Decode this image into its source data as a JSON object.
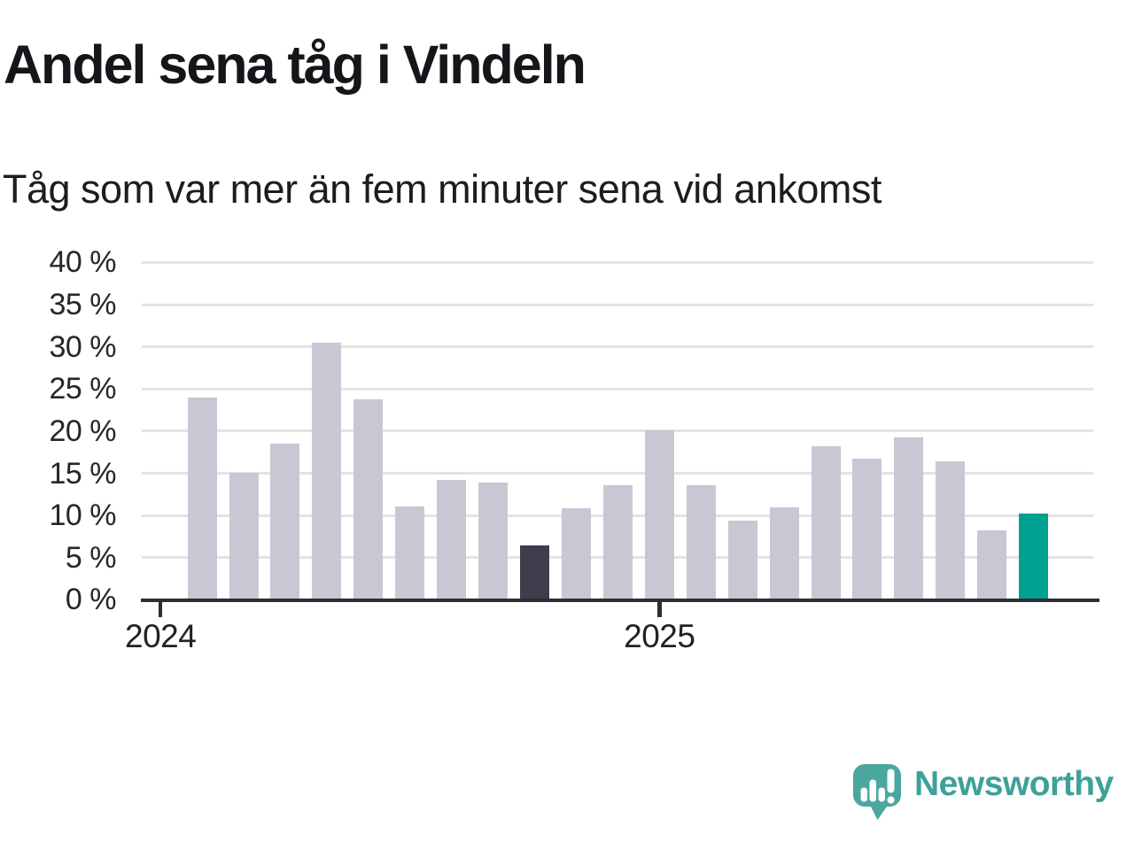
{
  "header": {
    "title": "Andel sena tåg i Vindeln",
    "subtitle": "Tåg som var mer än fem minuter sena vid ankomst"
  },
  "branding": {
    "wordmark": "Newsworthy",
    "logo_icon": "speech-bubble-bar-chart-exclamation",
    "logo_color": "#49a7a0",
    "wordmark_color": "#3da19a"
  },
  "chart_data": {
    "type": "bar",
    "title": "Andel sena tåg i Vindeln",
    "subtitle": "Tåg som var mer än fem minuter sena vid ankomst",
    "unit": "%",
    "grid": true,
    "legend": false,
    "y_axis": {
      "min": 0,
      "max": 40,
      "ticks": [
        {
          "value": 0,
          "label": "0 %"
        },
        {
          "value": 5,
          "label": "5 %"
        },
        {
          "value": 10,
          "label": "10 %"
        },
        {
          "value": 15,
          "label": "15 %"
        },
        {
          "value": 20,
          "label": "20 %"
        },
        {
          "value": 25,
          "label": "25 %"
        },
        {
          "value": 30,
          "label": "30 %"
        },
        {
          "value": 35,
          "label": "35 %"
        },
        {
          "value": 40,
          "label": "40 %"
        }
      ]
    },
    "x_axis": {
      "ticks": [
        {
          "label": "2024",
          "slot": 0
        },
        {
          "label": "2025",
          "slot": 12
        }
      ]
    },
    "values": [
      23.9,
      15.0,
      18.4,
      30.4,
      23.7,
      11.0,
      14.1,
      13.8,
      6.3,
      10.7,
      13.5,
      20.0,
      13.5,
      9.3,
      10.9,
      18.1,
      16.6,
      19.1,
      16.3,
      8.1,
      10.1
    ],
    "highlights": {
      "dark_index": 8,
      "accent_index": 20
    },
    "colors": {
      "bar_default": "#c8c7d3",
      "bar_dark": "#3e3d4c",
      "bar_accent": "#00a191",
      "gridline": "#e3e3e3",
      "axis": "#2d2d32"
    }
  }
}
